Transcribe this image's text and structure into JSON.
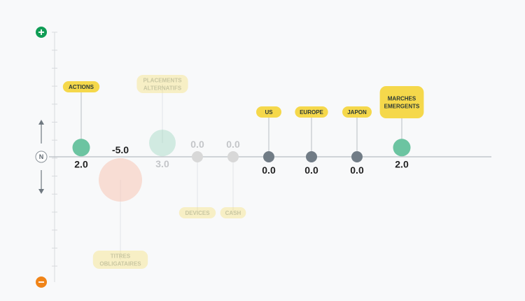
{
  "chart_data": {
    "type": "scatter",
    "title": "",
    "xlabel": "",
    "ylabel": "",
    "neutral_label": "N",
    "top_end_icon": "plus-icon",
    "bottom_end_icon": "minus-icon",
    "colors": {
      "positive": "#6cc4a1",
      "negative": "#f8c7b4",
      "neutral": "#d8d8d8",
      "neutral_active": "#717c86",
      "tag": "#f5d84b",
      "plus": "#109d55",
      "minus": "#f08418"
    },
    "points": [
      {
        "label": "ACTIONS",
        "value": 2.0,
        "display": "2.0",
        "active": true
      },
      {
        "label": "TITRES OBLIGATAIRES",
        "value": -5.0,
        "display": "-5.0",
        "active": false
      },
      {
        "label": "PLACEMENTS ALTERNATIFS",
        "value": 3.0,
        "display": "3.0",
        "active": false
      },
      {
        "label": "DEVICES",
        "value": 0.0,
        "display": "0.0",
        "active": false
      },
      {
        "label": "CASH",
        "value": 0.0,
        "display": "0.0",
        "active": false
      },
      {
        "label": "US",
        "value": 0.0,
        "display": "0.0",
        "active": true
      },
      {
        "label": "EUROPE",
        "value": 0.0,
        "display": "0.0",
        "active": true
      },
      {
        "label": "JAPON",
        "value": 0.0,
        "display": "0.0",
        "active": true
      },
      {
        "label": "MARCHES EMERGENTS",
        "value": 2.0,
        "display": "2.0",
        "active": true
      }
    ]
  }
}
